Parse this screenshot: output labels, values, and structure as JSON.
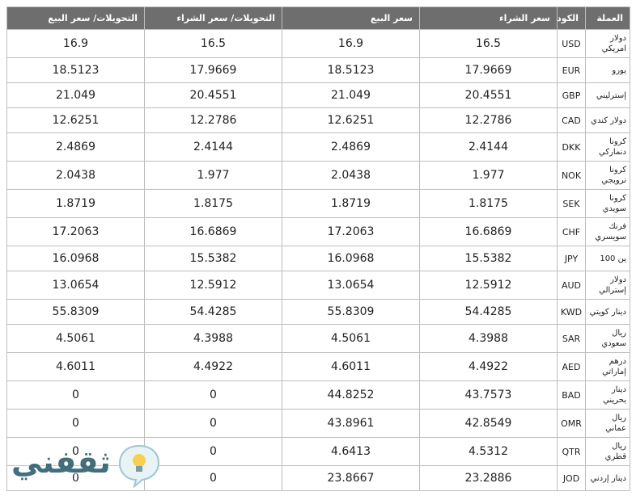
{
  "table": {
    "headers": [
      "العملة",
      "الكود",
      "سعر الشراء",
      "سعر البيع",
      "التحويلات/ سعر الشراء",
      "التحويلات/ سعر البيع"
    ],
    "rows": [
      [
        "دولار امريكي",
        "USD",
        16.5,
        16.9,
        16.5,
        16.9
      ],
      [
        "يورو",
        "EUR",
        17.9669,
        18.5123,
        17.9669,
        18.5123
      ],
      [
        "إسترليني",
        "GBP",
        20.4551,
        21.049,
        20.4551,
        21.049
      ],
      [
        "دولار كندي",
        "CAD",
        12.2786,
        12.6251,
        12.2786,
        12.6251
      ],
      [
        "كرونا دنماركي",
        "DKK",
        2.4144,
        2.4869,
        2.4144,
        2.4869
      ],
      [
        "كرونا نرويجي",
        "NOK",
        1.977,
        2.0438,
        1.977,
        2.0438
      ],
      [
        "كرونا سويدي",
        "SEK",
        1.8175,
        1.8719,
        1.8175,
        1.8719
      ],
      [
        "فرنك سويسري",
        "CHF",
        16.6869,
        17.2063,
        16.6869,
        17.2063
      ],
      [
        "ين 100",
        "JPY",
        15.5382,
        16.0968,
        15.5382,
        16.0968
      ],
      [
        "دولار إسترالي",
        "AUD",
        12.5912,
        13.0654,
        12.5912,
        13.0654
      ],
      [
        "دينار كويتي",
        "KWD",
        54.4285,
        55.8309,
        54.4285,
        55.8309
      ],
      [
        "ريال سعودي",
        "SAR",
        4.3988,
        4.5061,
        4.3988,
        4.5061
      ],
      [
        "درهم إماراتي",
        "AED",
        4.4922,
        4.6011,
        4.4922,
        4.6011
      ],
      [
        "دينار بحريني",
        "BAD",
        43.7573,
        44.8252,
        0,
        0
      ],
      [
        "ريال عماني",
        "OMR",
        42.8549,
        43.8961,
        0,
        0
      ],
      [
        "ريال قطري",
        "QTR",
        4.5312,
        4.6413,
        0,
        0
      ],
      [
        "دينار إردني",
        "JOD",
        23.2886,
        23.8667,
        0,
        0
      ]
    ]
  },
  "watermark": "ثقفني"
}
